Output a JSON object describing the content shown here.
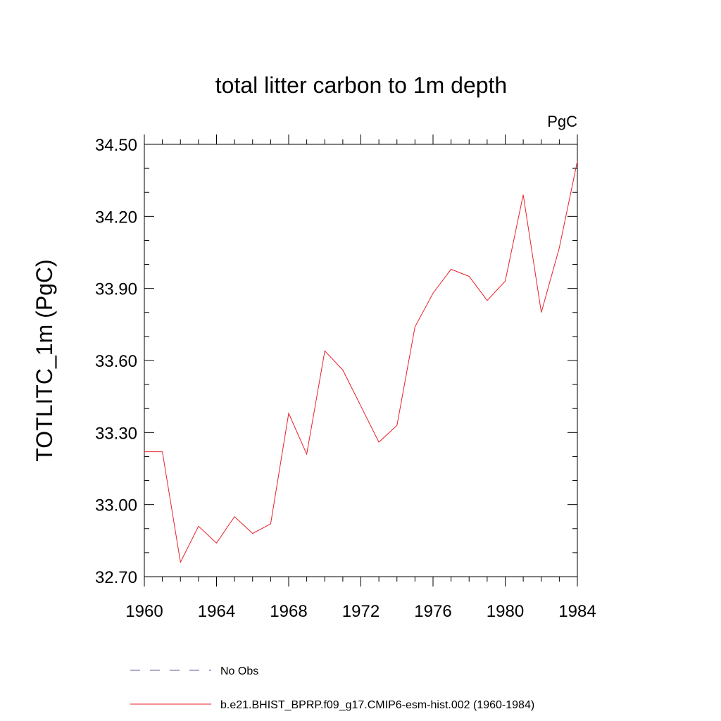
{
  "chart_data": {
    "type": "line",
    "title": "total litter carbon to 1m depth",
    "units_label": "PgC",
    "ylabel": "TOTLITC_1m  (PgC)",
    "xlabel": "",
    "xlim": [
      1960,
      1984
    ],
    "ylim": [
      32.7,
      34.5
    ],
    "x_ticks": [
      1960,
      1964,
      1968,
      1972,
      1976,
      1980,
      1984
    ],
    "x_tick_labels": [
      "1960",
      "1964",
      "1968",
      "1972",
      "1976",
      "1980",
      "1984"
    ],
    "y_ticks": [
      32.7,
      33.0,
      33.3,
      33.6,
      33.9,
      34.2,
      34.5
    ],
    "y_tick_labels": [
      "32.70",
      "33.00",
      "33.30",
      "33.60",
      "33.90",
      "34.20",
      "34.50"
    ],
    "grid": false,
    "legend_position": "bottom",
    "series": [
      {
        "name": "b.e21.BHIST_BPRP.f09_g17.CMIP6-esm-hist.002 (1960-1984)",
        "color": "#e8212a",
        "style": "solid",
        "x": [
          1960,
          1961,
          1962,
          1963,
          1964,
          1965,
          1966,
          1967,
          1968,
          1969,
          1970,
          1971,
          1972,
          1973,
          1974,
          1975,
          1976,
          1977,
          1978,
          1979,
          1980,
          1981,
          1982,
          1983,
          1984
        ],
        "y": [
          33.22,
          33.22,
          32.76,
          32.91,
          32.84,
          32.95,
          32.88,
          32.92,
          33.38,
          33.21,
          33.64,
          33.56,
          33.41,
          33.26,
          33.33,
          33.74,
          33.88,
          33.98,
          33.95,
          33.85,
          33.93,
          34.29,
          33.8,
          34.07,
          34.43
        ]
      }
    ],
    "legend": [
      {
        "label": "No Obs",
        "color": "#5a5aa8",
        "style": "dashed"
      },
      {
        "label": "b.e21.BHIST_BPRP.f09_g17.CMIP6-esm-hist.002 (1960-1984)",
        "color": "#e8212a",
        "style": "solid"
      }
    ]
  }
}
